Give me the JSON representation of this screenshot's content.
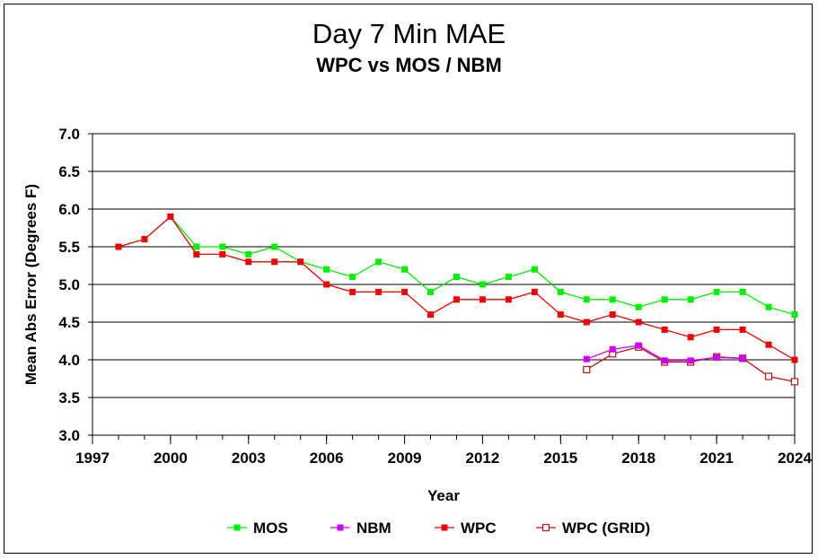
{
  "chart_data": {
    "type": "line",
    "title": "Day 7 Min MAE",
    "subtitle": "WPC vs MOS / NBM",
    "xlabel": "Year",
    "ylabel": "Mean Abs Error (Degrees F)",
    "xlim": [
      1997,
      2024
    ],
    "ylim": [
      3.0,
      7.0
    ],
    "xticks": [
      "1997",
      "2000",
      "2003",
      "2006",
      "2009",
      "2012",
      "2015",
      "2018",
      "2021",
      "2024"
    ],
    "yticks": [
      "3.0",
      "3.5",
      "4.0",
      "4.5",
      "5.0",
      "5.5",
      "6.0",
      "6.5",
      "7.0"
    ],
    "grid": "horizontal",
    "legend_position": "bottom",
    "series": [
      {
        "name": "MOS",
        "color": "#00ee00",
        "marker": "filled-square",
        "x": [
          1998,
          1999,
          2000,
          2001,
          2002,
          2003,
          2004,
          2005,
          2006,
          2007,
          2008,
          2009,
          2010,
          2011,
          2012,
          2013,
          2014,
          2015,
          2016,
          2017,
          2018,
          2019,
          2020,
          2021,
          2022,
          2023,
          2024
        ],
        "values": [
          5.5,
          5.6,
          5.9,
          5.5,
          5.5,
          5.4,
          5.5,
          5.3,
          5.2,
          5.1,
          5.3,
          5.2,
          4.9,
          5.1,
          5.0,
          5.1,
          5.2,
          4.9,
          4.8,
          4.8,
          4.7,
          4.8,
          4.8,
          4.9,
          4.9,
          4.7,
          4.6
        ]
      },
      {
        "name": "NBM",
        "color": "#cc00ff",
        "marker": "filled-square",
        "x": [
          2016,
          2017,
          2018,
          2019,
          2020,
          2021,
          2022
        ],
        "values": [
          4.01,
          4.14,
          4.19,
          3.99,
          3.99,
          4.03,
          4.02
        ]
      },
      {
        "name": "WPC",
        "color": "#ee0000",
        "marker": "filled-square",
        "x": [
          1998,
          1999,
          2000,
          2001,
          2002,
          2003,
          2004,
          2005,
          2006,
          2007,
          2008,
          2009,
          2010,
          2011,
          2012,
          2013,
          2014,
          2015,
          2016,
          2017,
          2018,
          2019,
          2020,
          2021,
          2022,
          2023,
          2024
        ],
        "values": [
          5.5,
          5.6,
          5.9,
          5.4,
          5.4,
          5.3,
          5.3,
          5.3,
          5.0,
          4.9,
          4.9,
          4.9,
          4.6,
          4.8,
          4.8,
          4.8,
          4.9,
          4.6,
          4.5,
          4.6,
          4.5,
          4.4,
          4.3,
          4.4,
          4.4,
          4.2,
          4.0
        ]
      },
      {
        "name": "WPC (GRID)",
        "color": "#bb1111",
        "marker": "open-square",
        "x": [
          2016,
          2017,
          2018,
          2019,
          2020,
          2021,
          2022,
          2023,
          2024
        ],
        "values": [
          3.87,
          4.08,
          4.17,
          3.97,
          3.97,
          4.04,
          4.02,
          3.78,
          3.71
        ]
      }
    ]
  }
}
